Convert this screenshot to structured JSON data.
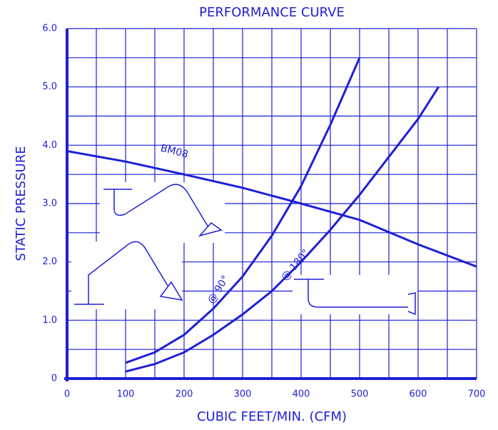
{
  "chart_data": {
    "type": "line",
    "title": "PERFORMANCE CURVE",
    "xlabel": "CUBIC FEET/MIN. (CFM)",
    "ylabel": "STATIC PRESSURE",
    "color": "#1f1fd6",
    "xlim": [
      0,
      700
    ],
    "ylim": [
      0,
      6
    ],
    "xticks": [
      0,
      100,
      200,
      300,
      400,
      500,
      600,
      700
    ],
    "yticks": [
      0,
      {
        "value": 1,
        "label": "1.0"
      },
      {
        "value": 2,
        "label": "2.0"
      },
      {
        "value": 3,
        "label": "3.0"
      },
      {
        "value": 4,
        "label": "4.0"
      },
      {
        "value": 5,
        "label": "5.0"
      },
      {
        "value": 6,
        "label": "6.0"
      }
    ],
    "x_gridlines": [
      0,
      50,
      100,
      150,
      200,
      250,
      300,
      350,
      400,
      450,
      500,
      550,
      600,
      650,
      700
    ],
    "y_gridlines": [
      0,
      0.5,
      1,
      1.5,
      2,
      2.5,
      3,
      3.5,
      4,
      4.5,
      5,
      5.5,
      6
    ],
    "grid": true,
    "series": [
      {
        "name": "BM08",
        "x": [
          0,
          100,
          200,
          300,
          400,
          500,
          600,
          700
        ],
        "values": [
          3.9,
          3.72,
          3.5,
          3.27,
          3.0,
          2.72,
          2.3,
          1.92
        ]
      },
      {
        "name": "@ 90°",
        "x": [
          100,
          150,
          200,
          250,
          300,
          350,
          400,
          450,
          500
        ],
        "values": [
          0.27,
          0.45,
          0.75,
          1.2,
          1.75,
          2.45,
          3.3,
          4.35,
          5.5
        ]
      },
      {
        "name": "@ 180°",
        "x": [
          100,
          150,
          200,
          250,
          300,
          350,
          400,
          450,
          500,
          550,
          600,
          635
        ],
        "values": [
          0.12,
          0.25,
          0.45,
          0.75,
          1.1,
          1.5,
          2.0,
          2.55,
          3.15,
          3.8,
          4.45,
          5.0
        ]
      }
    ]
  }
}
